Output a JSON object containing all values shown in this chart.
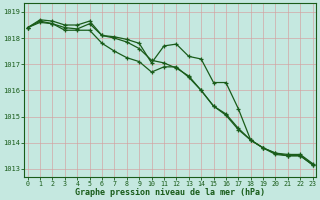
{
  "bg_color": "#c5e8e0",
  "plot_bg_color": "#c5e8e0",
  "grid_color": "#d4a0a0",
  "line_color": "#1a5c1a",
  "x": [
    0,
    1,
    2,
    3,
    4,
    5,
    6,
    7,
    8,
    9,
    10,
    11,
    12,
    13,
    14,
    15,
    16,
    17,
    18,
    19,
    20,
    21,
    22,
    23
  ],
  "line1": [
    1018.4,
    1018.7,
    1018.65,
    1018.5,
    1018.5,
    1018.65,
    1018.1,
    1018.05,
    1017.95,
    1017.8,
    1017.05,
    1017.7,
    1017.77,
    1017.3,
    1017.2,
    1016.3,
    1016.3,
    1015.3,
    1014.1,
    1013.8,
    1013.6,
    1013.55,
    1013.55,
    1013.2
  ],
  "line2": [
    1018.4,
    1018.65,
    1018.55,
    1018.3,
    1018.3,
    1018.3,
    1017.8,
    1017.5,
    1017.25,
    1017.1,
    1016.7,
    1016.9,
    1016.9,
    1016.5,
    1016.0,
    1015.4,
    1015.05,
    1014.5,
    1014.1,
    1013.8,
    1013.55,
    1013.5,
    1013.5,
    1013.15
  ],
  "line3": [
    1018.4,
    1018.6,
    1018.55,
    1018.4,
    1018.35,
    1018.55,
    1018.1,
    1018.0,
    1017.85,
    1017.6,
    1017.15,
    1017.05,
    1016.85,
    1016.55,
    1016.0,
    1015.4,
    1015.1,
    1014.55,
    1014.1,
    1013.8,
    1013.6,
    1013.5,
    1013.5,
    1013.15
  ],
  "ylim": [
    1012.7,
    1019.35
  ],
  "yticks": [
    1013,
    1014,
    1015,
    1016,
    1017,
    1018,
    1019
  ],
  "xticks": [
    0,
    1,
    2,
    3,
    4,
    5,
    6,
    7,
    8,
    9,
    10,
    11,
    12,
    13,
    14,
    15,
    16,
    17,
    18,
    19,
    20,
    21,
    22,
    23
  ],
  "xlabel": "Graphe pression niveau de la mer (hPa)",
  "tick_color": "#1a5c1a",
  "axis_color": "#1a5c1a",
  "label_color": "#1a5c1a",
  "marker": "+",
  "marker_size": 3.5,
  "linewidth": 0.9
}
